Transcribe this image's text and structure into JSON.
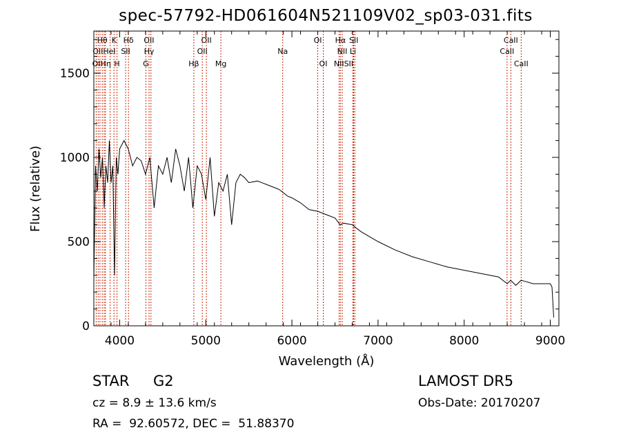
{
  "chart_data": {
    "type": "line",
    "title": "spec-57792-HD061604N521109V02_sp03-031.fits",
    "xlabel": "Wavelength (Å)",
    "ylabel": "Flux (relative)",
    "xlim": [
      3700,
      9100
    ],
    "ylim": [
      0,
      1750
    ],
    "xticks": [
      4000,
      5000,
      6000,
      7000,
      8000,
      9000
    ],
    "yticks": [
      0,
      500,
      1000,
      1500
    ],
    "grid": false,
    "series": [
      {
        "x": [
          3700,
          3720,
          3740,
          3760,
          3780,
          3800,
          3820,
          3840,
          3860,
          3880,
          3900,
          3920,
          3940,
          3960,
          3980,
          4000,
          4050,
          4100,
          4150,
          4200,
          4250,
          4300,
          4350,
          4400,
          4450,
          4500,
          4550,
          4600,
          4650,
          4700,
          4750,
          4800,
          4850,
          4900,
          4950,
          5000,
          5050,
          5100,
          5150,
          5200,
          5250,
          5300,
          5350,
          5400,
          5450,
          5500,
          5600,
          5700,
          5800,
          5850,
          5900,
          5950,
          6000,
          6100,
          6200,
          6300,
          6400,
          6500,
          6560,
          6600,
          6700,
          6800,
          7000,
          7200,
          7400,
          7600,
          7800,
          8000,
          8200,
          8400,
          8500,
          8540,
          8600,
          8660,
          8700,
          8800,
          9000,
          9020,
          9040
        ],
        "values": [
          280,
          950,
          800,
          1050,
          880,
          1000,
          700,
          950,
          850,
          1100,
          850,
          950,
          300,
          1000,
          900,
          1050,
          1100,
          1050,
          950,
          1000,
          980,
          900,
          1000,
          700,
          950,
          900,
          1000,
          850,
          1050,
          950,
          800,
          1000,
          700,
          950,
          900,
          750,
          1000,
          650,
          850,
          800,
          900,
          600,
          850,
          900,
          880,
          850,
          860,
          840,
          820,
          810,
          790,
          770,
          760,
          730,
          690,
          680,
          660,
          640,
          600,
          610,
          600,
          560,
          500,
          450,
          410,
          380,
          350,
          330,
          310,
          290,
          250,
          270,
          240,
          270,
          265,
          250,
          250,
          230,
          50
        ]
      }
    ],
    "line_labels": [
      {
        "text": "Hθ",
        "x": 3798
      },
      {
        "text": "K",
        "x": 3934
      },
      {
        "text": "Hδ",
        "x": 4102
      },
      {
        "text": "OII",
        "x": 4340
      },
      {
        "text": "OII",
        "x": 5007
      },
      {
        "text": "OI",
        "x": 6300
      },
      {
        "text": "Hα",
        "x": 6563
      },
      {
        "text": "SII",
        "x": 6718
      },
      {
        "text": "CaII",
        "x": 8542
      },
      {
        "text": "OIIHeI",
        "x": 3820
      },
      {
        "text": "SII",
        "x": 4069
      },
      {
        "text": "Hγ",
        "x": 4341
      },
      {
        "text": "OII",
        "x": 4959
      },
      {
        "text": "Na",
        "x": 5893
      },
      {
        "text": "NII",
        "x": 6584
      },
      {
        "text": "Li",
        "x": 6708
      },
      {
        "text": "CaII",
        "x": 8498
      },
      {
        "text": "OIHη",
        "x": 3790
      },
      {
        "text": "H",
        "x": 3969
      },
      {
        "text": "G",
        "x": 4304
      },
      {
        "text": "Hβ",
        "x": 4861
      },
      {
        "text": "Mg",
        "x": 5175
      },
      {
        "text": "OI",
        "x": 6364
      },
      {
        "text": "NIISII",
        "x": 6600
      },
      {
        "text": "CaII",
        "x": 8662
      }
    ],
    "line_positions": [
      3727,
      3750,
      3771,
      3798,
      3820,
      3835,
      3889,
      3934,
      3969,
      4069,
      4102,
      4304,
      4341,
      4363,
      4861,
      4959,
      5007,
      5175,
      5893,
      6300,
      6364,
      6548,
      6563,
      6584,
      6708,
      6717,
      6731,
      8498,
      8542,
      8662
    ],
    "line_color": "#cc2200"
  },
  "info": {
    "object_class": "STAR",
    "subclass": "G2",
    "survey": "LAMOST DR5",
    "cz": "cz = 8.9 ± 13.6 km/s",
    "obs_date": "Obs-Date: 20170207",
    "coords": "RA =  92.60572, DEC =  51.88370"
  }
}
